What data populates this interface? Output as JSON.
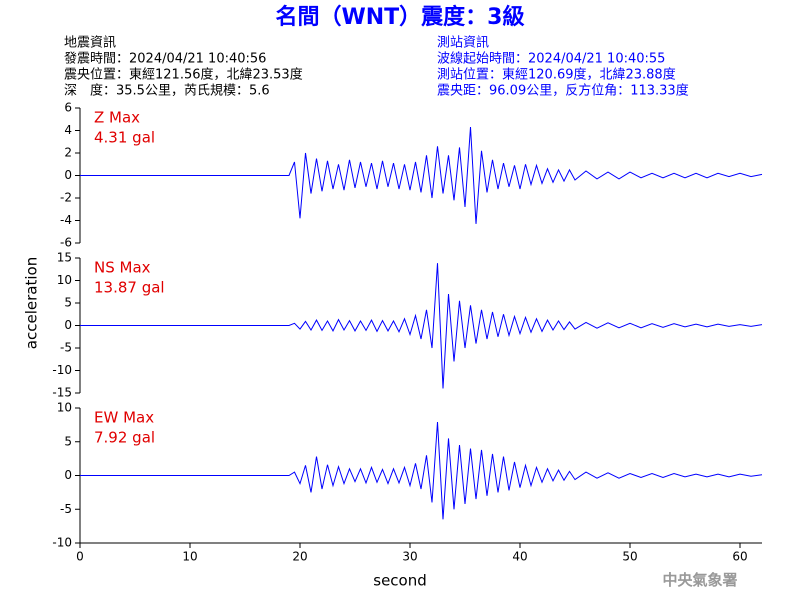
{
  "header": {
    "title": "名間（WNT）震度：3級",
    "left": [
      "地震資訊",
      "發震時間：2024/04/21 10:40:56",
      "震央位置：東經121.56度，北緯23.53度",
      "深　度：35.5公里，芮氏規模：5.6"
    ],
    "right": [
      "測站資訊",
      "波線起始時間：2024/04/21 10:40:55",
      "測站位置：東經120.69度，北緯23.88度",
      "震央距：96.09公里，反方位角：113.33度"
    ],
    "footer": "中央氣象署"
  },
  "xlabel": "second",
  "ylabel": "acceleration",
  "chart_data": [
    {
      "type": "line",
      "color": "#0000ff",
      "annotation": [
        "Z Max",
        "4.31 gal"
      ],
      "xlim": [
        0,
        62
      ],
      "ylim": [
        -6,
        6
      ],
      "yticks": [
        -6,
        -4,
        -2,
        0,
        2,
        4,
        6
      ],
      "x": [
        0,
        19,
        19.5,
        20,
        20.5,
        21,
        21.5,
        22,
        22.5,
        23,
        23.5,
        24,
        24.5,
        25,
        25.5,
        26,
        26.5,
        27,
        27.5,
        28,
        28.5,
        29,
        29.5,
        30,
        30.5,
        31,
        31.5,
        32,
        32.5,
        33,
        33.5,
        34,
        34.5,
        35,
        35.5,
        36,
        36.5,
        37,
        37.5,
        38,
        38.5,
        39,
        39.5,
        40,
        40.5,
        41,
        41.5,
        42,
        42.5,
        43,
        43.5,
        44,
        44.5,
        45,
        46,
        47,
        48,
        49,
        50,
        51,
        52,
        53,
        54,
        55,
        56,
        57,
        58,
        59,
        60,
        61,
        62
      ],
      "values": [
        0,
        0,
        1.2,
        -3.8,
        2.0,
        -1.6,
        1.5,
        -1.4,
        1.3,
        -1.2,
        1.0,
        -1.3,
        1.4,
        -1.1,
        1.2,
        -1.0,
        1.1,
        -1.2,
        1.3,
        -1.0,
        1.1,
        -1.2,
        1.0,
        -1.3,
        1.2,
        -1.5,
        1.8,
        -2.0,
        2.6,
        -1.6,
        1.8,
        -2.2,
        2.5,
        -2.8,
        4.31,
        -4.3,
        2.2,
        -1.5,
        1.4,
        -1.2,
        1.1,
        -1.0,
        0.9,
        -1.2,
        1.0,
        -0.8,
        0.9,
        -0.7,
        0.6,
        -0.6,
        0.5,
        -0.5,
        0.5,
        -0.4,
        0.4,
        -0.3,
        0.3,
        -0.3,
        0.3,
        -0.2,
        0.2,
        -0.2,
        0.2,
        -0.2,
        0.2,
        -0.2,
        0.2,
        -0.1,
        0.2,
        -0.1,
        0.1
      ]
    },
    {
      "type": "line",
      "color": "#0000ff",
      "annotation": [
        "NS Max",
        "13.87 gal"
      ],
      "xlim": [
        0,
        62
      ],
      "ylim": [
        -15,
        15
      ],
      "yticks": [
        -15,
        -10,
        -5,
        0,
        5,
        10,
        15
      ],
      "x": [
        0,
        19,
        19.5,
        20,
        20.5,
        21,
        21.5,
        22,
        22.5,
        23,
        23.5,
        24,
        24.5,
        25,
        25.5,
        26,
        26.5,
        27,
        27.5,
        28,
        28.5,
        29,
        29.5,
        30,
        30.5,
        31,
        31.5,
        32,
        32.5,
        33,
        33.5,
        34,
        34.5,
        35,
        35.5,
        36,
        36.5,
        37,
        37.5,
        38,
        38.5,
        39,
        39.5,
        40,
        40.5,
        41,
        41.5,
        42,
        42.5,
        43,
        43.5,
        44,
        44.5,
        45,
        46,
        47,
        48,
        49,
        50,
        51,
        52,
        53,
        54,
        55,
        56,
        57,
        58,
        59,
        60,
        61,
        62
      ],
      "values": [
        0,
        0,
        0.5,
        -0.8,
        0.9,
        -1.0,
        1.2,
        -1.1,
        1.0,
        -1.2,
        1.3,
        -1.0,
        1.1,
        -1.2,
        1.0,
        -1.1,
        1.2,
        -1.3,
        1.1,
        -1.2,
        1.0,
        -1.4,
        1.5,
        -2.0,
        2.2,
        -3.0,
        3.5,
        -5.0,
        13.87,
        -14.0,
        7.0,
        -8.0,
        5.5,
        -5.0,
        4.5,
        -4.0,
        3.5,
        -3.0,
        3.0,
        -2.5,
        2.5,
        -2.2,
        2.0,
        -1.8,
        1.8,
        -1.5,
        1.5,
        -1.3,
        1.2,
        -1.0,
        1.0,
        -0.9,
        0.8,
        -0.8,
        0.7,
        -0.6,
        0.6,
        -0.5,
        0.5,
        -0.5,
        0.4,
        -0.4,
        0.4,
        -0.3,
        0.3,
        -0.3,
        0.3,
        -0.2,
        0.2,
        -0.2,
        0.2
      ]
    },
    {
      "type": "line",
      "color": "#0000ff",
      "annotation": [
        "EW Max",
        "7.92 gal"
      ],
      "xlim": [
        0,
        62
      ],
      "ylim": [
        -10,
        10
      ],
      "yticks": [
        -10,
        -5,
        0,
        5,
        10
      ],
      "xticks": [
        0,
        10,
        20,
        30,
        40,
        50,
        60
      ],
      "x": [
        0,
        19,
        19.5,
        20,
        20.5,
        21,
        21.5,
        22,
        22.5,
        23,
        23.5,
        24,
        24.5,
        25,
        25.5,
        26,
        26.5,
        27,
        27.5,
        28,
        28.5,
        29,
        29.5,
        30,
        30.5,
        31,
        31.5,
        32,
        32.5,
        33,
        33.5,
        34,
        34.5,
        35,
        35.5,
        36,
        36.5,
        37,
        37.5,
        38,
        38.5,
        39,
        39.5,
        40,
        40.5,
        41,
        41.5,
        42,
        42.5,
        43,
        43.5,
        44,
        44.5,
        45,
        46,
        47,
        48,
        49,
        50,
        51,
        52,
        53,
        54,
        55,
        56,
        57,
        58,
        59,
        60,
        61,
        62
      ],
      "values": [
        0,
        0,
        0.5,
        -1.2,
        1.5,
        -2.5,
        2.8,
        -2.0,
        1.6,
        -1.5,
        1.3,
        -1.2,
        1.0,
        -0.9,
        1.0,
        -1.1,
        1.2,
        -1.0,
        0.9,
        -1.2,
        1.0,
        -1.1,
        1.2,
        -1.5,
        1.8,
        -2.0,
        3.0,
        -4.0,
        7.92,
        -6.5,
        5.5,
        -5.0,
        4.5,
        -4.2,
        4.0,
        -3.5,
        3.8,
        -3.0,
        3.2,
        -2.5,
        2.8,
        -2.2,
        2.0,
        -1.8,
        1.5,
        -1.5,
        1.2,
        -1.0,
        1.0,
        -0.8,
        0.8,
        -0.7,
        0.6,
        -0.6,
        0.5,
        -0.4,
        0.4,
        -0.4,
        0.3,
        -0.3,
        0.3,
        -0.3,
        0.3,
        -0.2,
        0.2,
        -0.2,
        0.2,
        -0.2,
        0.2,
        -0.1,
        0.1
      ]
    }
  ]
}
